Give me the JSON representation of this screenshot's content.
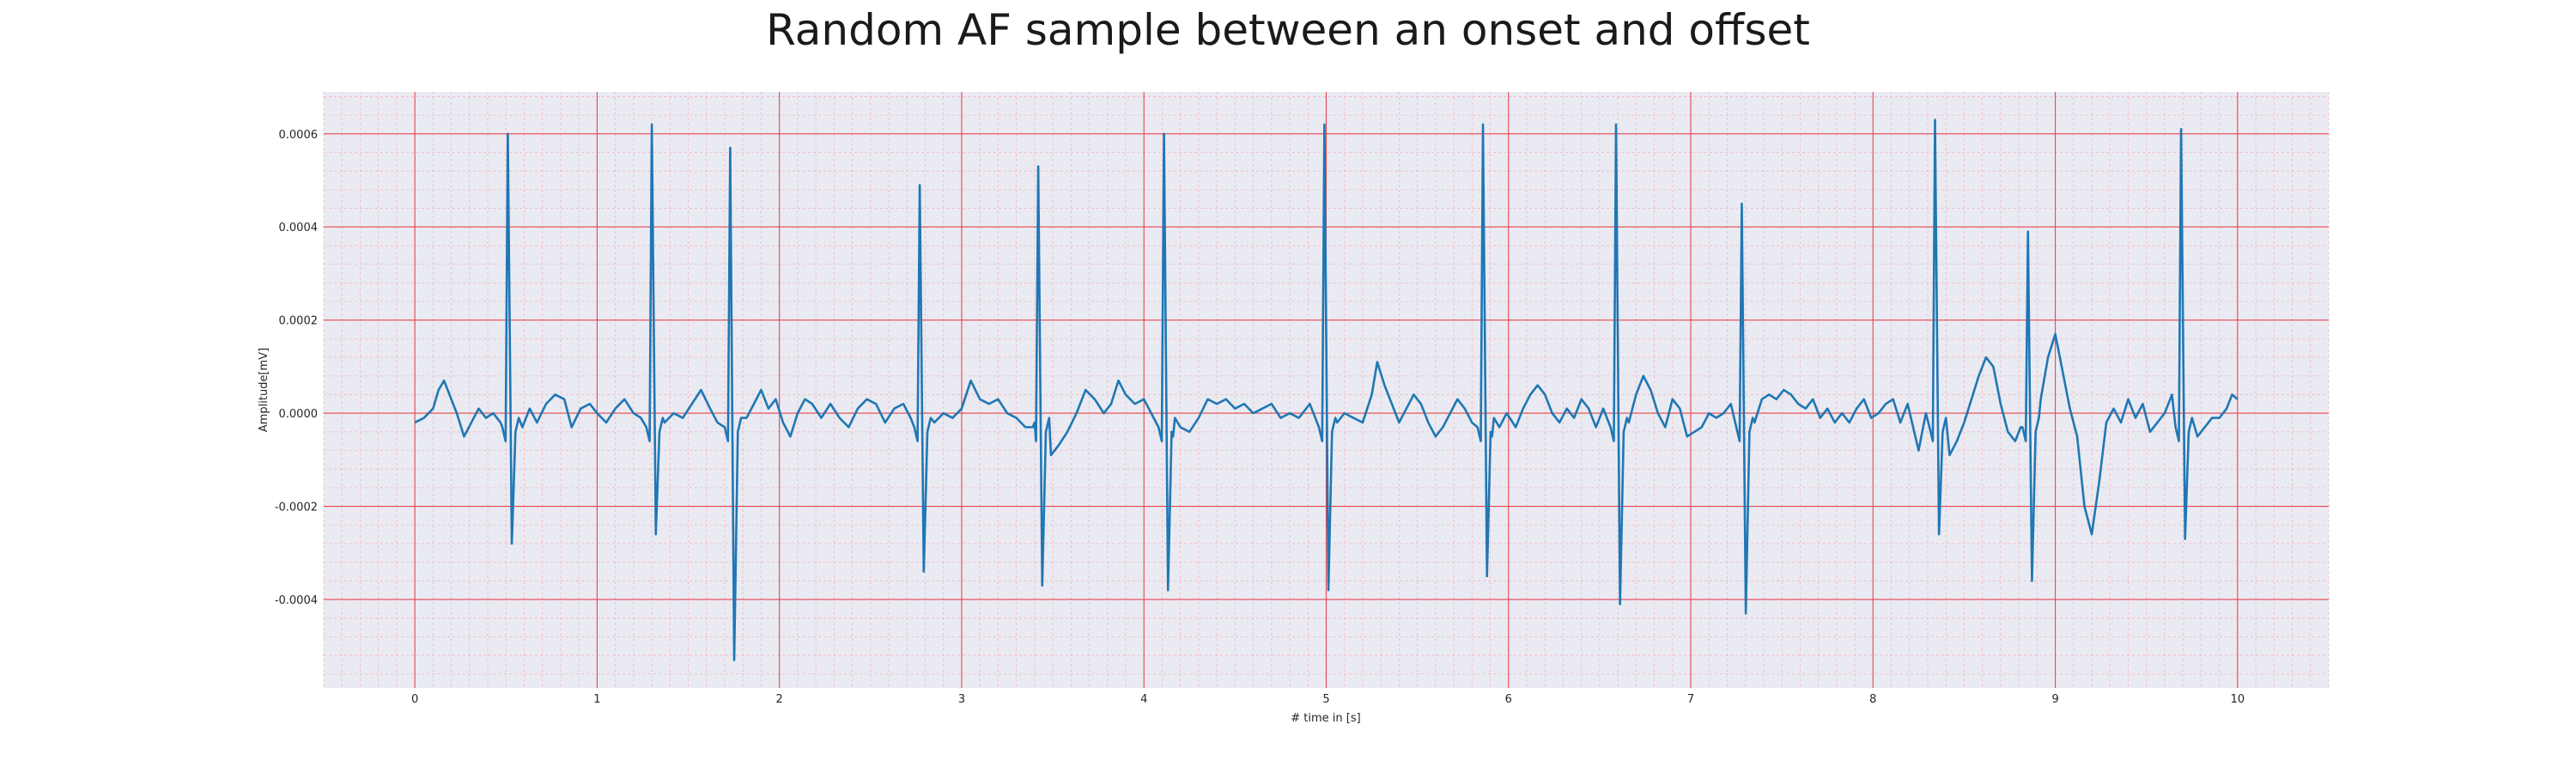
{
  "chart_data": {
    "type": "line",
    "title": "Random AF sample between an onset and offset",
    "xlabel": "# time in [s]",
    "ylabel": "Amplitude[mV]",
    "xlim": [
      -0.5,
      10.5
    ],
    "ylim": [
      -0.00059,
      0.00069
    ],
    "x_ticks": [
      0,
      1,
      2,
      3,
      4,
      5,
      6,
      7,
      8,
      9,
      10
    ],
    "y_ticks": [
      -0.0004,
      -0.0002,
      0.0,
      0.0002,
      0.0004,
      0.0006
    ],
    "y_tick_labels": [
      "-0.0004",
      "-0.0002",
      "0.0000",
      "0.0002",
      "0.0004",
      "0.0006"
    ],
    "grid": "on",
    "series": [
      {
        "line_color": "#1f77b4",
        "baseline": [
          [
            0.0,
            -2e-05
          ],
          [
            0.05,
            -1e-05
          ],
          [
            0.1,
            1e-05
          ],
          [
            0.13,
            5e-05
          ],
          [
            0.16,
            7e-05
          ],
          [
            0.19,
            4e-05
          ],
          [
            0.23,
            0.0
          ],
          [
            0.27,
            -5e-05
          ],
          [
            0.31,
            -2e-05
          ],
          [
            0.35,
            1e-05
          ],
          [
            0.39,
            -1e-05
          ],
          [
            0.43,
            0.0
          ],
          [
            0.47,
            -2e-05
          ],
          [
            0.59,
            -3e-05
          ],
          [
            0.63,
            1e-05
          ],
          [
            0.67,
            -2e-05
          ],
          [
            0.72,
            2e-05
          ],
          [
            0.77,
            4e-05
          ],
          [
            0.82,
            3e-05
          ],
          [
            0.86,
            -3e-05
          ],
          [
            0.91,
            1e-05
          ],
          [
            0.96,
            2e-05
          ],
          [
            1.0,
            0.0
          ],
          [
            1.05,
            -2e-05
          ],
          [
            1.1,
            1e-05
          ],
          [
            1.15,
            3e-05
          ],
          [
            1.2,
            0.0
          ],
          [
            1.24,
            -1e-05
          ],
          [
            1.37,
            -2e-05
          ],
          [
            1.42,
            0.0
          ],
          [
            1.47,
            -1e-05
          ],
          [
            1.52,
            2e-05
          ],
          [
            1.57,
            5e-05
          ],
          [
            1.62,
            1e-05
          ],
          [
            1.66,
            -2e-05
          ],
          [
            1.82,
            -1e-05
          ],
          [
            1.86,
            2e-05
          ],
          [
            1.9,
            5e-05
          ],
          [
            1.94,
            1e-05
          ],
          [
            1.98,
            3e-05
          ],
          [
            2.02,
            -2e-05
          ],
          [
            2.06,
            -5e-05
          ],
          [
            2.1,
            0.0
          ],
          [
            2.14,
            3e-05
          ],
          [
            2.18,
            2e-05
          ],
          [
            2.23,
            -1e-05
          ],
          [
            2.28,
            2e-05
          ],
          [
            2.33,
            -1e-05
          ],
          [
            2.38,
            -3e-05
          ],
          [
            2.43,
            1e-05
          ],
          [
            2.48,
            3e-05
          ],
          [
            2.53,
            2e-05
          ],
          [
            2.58,
            -2e-05
          ],
          [
            2.63,
            1e-05
          ],
          [
            2.68,
            2e-05
          ],
          [
            2.72,
            -1e-05
          ],
          [
            2.85,
            -2e-05
          ],
          [
            2.9,
            0.0
          ],
          [
            2.95,
            -1e-05
          ],
          [
            3.0,
            1e-05
          ],
          [
            3.05,
            7e-05
          ],
          [
            3.1,
            3e-05
          ],
          [
            3.15,
            2e-05
          ],
          [
            3.2,
            3e-05
          ],
          [
            3.25,
            0.0
          ],
          [
            3.3,
            -1e-05
          ],
          [
            3.35,
            -3e-05
          ],
          [
            3.4,
            -2e-05
          ],
          [
            3.49,
            -9e-05
          ],
          [
            3.53,
            -7e-05
          ],
          [
            3.58,
            -4e-05
          ],
          [
            3.63,
            0.0
          ],
          [
            3.68,
            5e-05
          ],
          [
            3.73,
            3e-05
          ],
          [
            3.78,
            0.0
          ],
          [
            3.82,
            2e-05
          ],
          [
            3.86,
            7e-05
          ],
          [
            3.9,
            4e-05
          ],
          [
            3.95,
            2e-05
          ],
          [
            4.0,
            3e-05
          ],
          [
            4.04,
            0.0
          ],
          [
            4.16,
            -5e-05
          ],
          [
            4.2,
            -3e-05
          ],
          [
            4.25,
            -4e-05
          ],
          [
            4.3,
            -1e-05
          ],
          [
            4.35,
            3e-05
          ],
          [
            4.4,
            2e-05
          ],
          [
            4.45,
            3e-05
          ],
          [
            4.5,
            1e-05
          ],
          [
            4.55,
            2e-05
          ],
          [
            4.6,
            0.0
          ],
          [
            4.65,
            1e-05
          ],
          [
            4.7,
            2e-05
          ],
          [
            4.75,
            -1e-05
          ],
          [
            4.8,
            0.0
          ],
          [
            4.85,
            -1e-05
          ],
          [
            4.91,
            2e-05
          ],
          [
            5.06,
            -2e-05
          ],
          [
            5.1,
            0.0
          ],
          [
            5.15,
            -1e-05
          ],
          [
            5.2,
            -2e-05
          ],
          [
            5.25,
            4e-05
          ],
          [
            5.28,
            0.00011
          ],
          [
            5.32,
            6e-05
          ],
          [
            5.36,
            2e-05
          ],
          [
            5.4,
            -2e-05
          ],
          [
            5.44,
            1e-05
          ],
          [
            5.48,
            4e-05
          ],
          [
            5.52,
            2e-05
          ],
          [
            5.56,
            -2e-05
          ],
          [
            5.6,
            -5e-05
          ],
          [
            5.64,
            -3e-05
          ],
          [
            5.68,
            0.0
          ],
          [
            5.72,
            3e-05
          ],
          [
            5.76,
            1e-05
          ],
          [
            5.8,
            -2e-05
          ],
          [
            5.91,
            -5e-05
          ],
          [
            5.95,
            -3e-05
          ],
          [
            5.99,
            0.0
          ],
          [
            6.04,
            -3e-05
          ],
          [
            6.08,
            1e-05
          ],
          [
            6.12,
            4e-05
          ],
          [
            6.16,
            6e-05
          ],
          [
            6.2,
            4e-05
          ],
          [
            6.24,
            0.0
          ],
          [
            6.28,
            -2e-05
          ],
          [
            6.32,
            1e-05
          ],
          [
            6.36,
            -1e-05
          ],
          [
            6.4,
            3e-05
          ],
          [
            6.44,
            1e-05
          ],
          [
            6.48,
            -3e-05
          ],
          [
            6.52,
            1e-05
          ],
          [
            6.66,
            -2e-05
          ],
          [
            6.7,
            4e-05
          ],
          [
            6.74,
            8e-05
          ],
          [
            6.78,
            5e-05
          ],
          [
            6.82,
            0.0
          ],
          [
            6.86,
            -3e-05
          ],
          [
            6.9,
            3e-05
          ],
          [
            6.94,
            1e-05
          ],
          [
            6.98,
            -5e-05
          ],
          [
            7.02,
            -4e-05
          ],
          [
            7.06,
            -3e-05
          ],
          [
            7.1,
            0.0
          ],
          [
            7.14,
            -1e-05
          ],
          [
            7.18,
            0.0
          ],
          [
            7.22,
            2e-05
          ],
          [
            7.35,
            -2e-05
          ],
          [
            7.39,
            3e-05
          ],
          [
            7.43,
            4e-05
          ],
          [
            7.47,
            3e-05
          ],
          [
            7.51,
            5e-05
          ],
          [
            7.55,
            4e-05
          ],
          [
            7.59,
            2e-05
          ],
          [
            7.63,
            1e-05
          ],
          [
            7.67,
            3e-05
          ],
          [
            7.71,
            -1e-05
          ],
          [
            7.75,
            1e-05
          ],
          [
            7.79,
            -2e-05
          ],
          [
            7.83,
            0.0
          ],
          [
            7.87,
            -2e-05
          ],
          [
            7.91,
            1e-05
          ],
          [
            7.95,
            3e-05
          ],
          [
            7.99,
            -1e-05
          ],
          [
            8.03,
            0.0
          ],
          [
            8.07,
            2e-05
          ],
          [
            8.11,
            3e-05
          ],
          [
            8.15,
            -2e-05
          ],
          [
            8.19,
            2e-05
          ],
          [
            8.25,
            -8e-05
          ],
          [
            8.29,
            0.0
          ],
          [
            8.42,
            -9e-05
          ],
          [
            8.46,
            -6e-05
          ],
          [
            8.5,
            -2e-05
          ],
          [
            8.54,
            3e-05
          ],
          [
            8.58,
            8e-05
          ],
          [
            8.62,
            0.00012
          ],
          [
            8.66,
            0.0001
          ],
          [
            8.7,
            2e-05
          ],
          [
            8.74,
            -4e-05
          ],
          [
            8.78,
            -6e-05
          ],
          [
            8.81,
            -3e-05
          ],
          [
            8.92,
            3e-05
          ],
          [
            8.96,
            0.00012
          ],
          [
            9.0,
            0.00017
          ],
          [
            9.04,
            9e-05
          ],
          [
            9.08,
            1e-05
          ],
          [
            9.12,
            -5e-05
          ],
          [
            9.16,
            -0.0002
          ],
          [
            9.2,
            -0.00026
          ],
          [
            9.24,
            -0.00015
          ],
          [
            9.28,
            -2e-05
          ],
          [
            9.32,
            1e-05
          ],
          [
            9.36,
            -2e-05
          ],
          [
            9.4,
            3e-05
          ],
          [
            9.44,
            -1e-05
          ],
          [
            9.48,
            2e-05
          ],
          [
            9.52,
            -4e-05
          ],
          [
            9.56,
            -2e-05
          ],
          [
            9.6,
            0.0
          ],
          [
            9.64,
            4e-05
          ],
          [
            9.78,
            -5e-05
          ],
          [
            9.82,
            -3e-05
          ],
          [
            9.86,
            -1e-05
          ],
          [
            9.9,
            -1e-05
          ],
          [
            9.94,
            1e-05
          ],
          [
            9.97,
            4e-05
          ],
          [
            10.0,
            3e-05
          ]
        ],
        "spikes": [
          [
            0.51,
            0.0006,
            -0.00028
          ],
          [
            1.3,
            0.00062,
            -0.00026
          ],
          [
            1.73,
            0.00057,
            -0.00053
          ],
          [
            2.77,
            0.00049,
            -0.00034
          ],
          [
            3.42,
            0.00053,
            -0.00037
          ],
          [
            4.11,
            0.0006,
            -0.00038
          ],
          [
            4.99,
            0.00062,
            -0.00038
          ],
          [
            5.86,
            0.00062,
            -0.00035
          ],
          [
            6.59,
            0.00062,
            -0.00041
          ],
          [
            7.28,
            0.00045,
            -0.00043
          ],
          [
            8.34,
            0.00063,
            -0.00026
          ],
          [
            8.85,
            0.00039,
            -0.00036
          ],
          [
            9.69,
            0.00061,
            -0.00027
          ]
        ]
      }
    ]
  }
}
